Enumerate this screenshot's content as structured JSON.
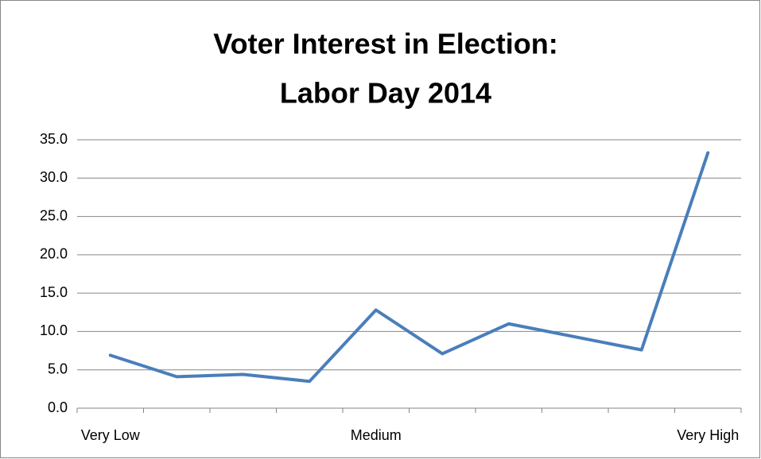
{
  "chart_data": {
    "type": "line",
    "title": [
      "Voter Interest in Election:",
      "Labor Day 2014"
    ],
    "categories": [
      "Very Low",
      null,
      null,
      null,
      "Medium",
      null,
      null,
      null,
      null,
      "Very High"
    ],
    "series": [
      {
        "color": "#4a7ebb",
        "values": [
          6.9,
          4.1,
          4.4,
          3.5,
          12.8,
          7.1,
          11.0,
          9.3,
          7.6,
          33.3
        ]
      }
    ],
    "ylim": [
      0,
      35
    ],
    "yticks": [
      {
        "value": 0,
        "label": "0.0"
      },
      {
        "value": 5,
        "label": "5.0"
      },
      {
        "value": 10,
        "label": "10.0"
      },
      {
        "value": 15,
        "label": "15.0"
      },
      {
        "value": 20,
        "label": "20.0"
      },
      {
        "value": 25,
        "label": "25.0"
      },
      {
        "value": 30,
        "label": "30.0"
      },
      {
        "value": 35,
        "label": "35.0"
      }
    ],
    "grid": true
  }
}
